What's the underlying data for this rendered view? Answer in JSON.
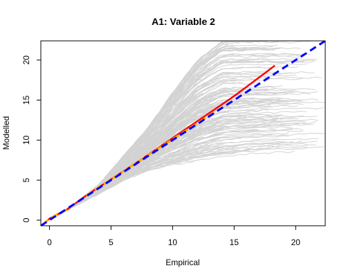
{
  "chart_data": {
    "type": "line",
    "title": "A1: Variable 2",
    "xlabel": "Empirical",
    "ylabel": "Modelled",
    "xlim": [
      -0.7,
      22.4
    ],
    "ylim": [
      -0.7,
      22.4
    ],
    "x_ticks": [
      0,
      5,
      10,
      15,
      20
    ],
    "y_ticks": [
      0,
      5,
      10,
      15,
      20
    ],
    "grid": false,
    "legend": "none",
    "colors": {
      "simulations": "#d3d3d3",
      "modelled_line": "#ff0000",
      "empirical_line": "#ffa500",
      "identity_line": "#0000ff"
    },
    "series": [
      {
        "style": "solid-red",
        "x": [
          -0.5,
          0,
          1.5,
          3,
          5,
          7,
          9,
          11,
          13,
          15,
          17,
          18.3
        ],
        "y": [
          -0.5,
          0.2,
          1.4,
          3.1,
          5.1,
          7.1,
          9.2,
          11.3,
          13.4,
          15.5,
          17.8,
          19.3
        ]
      },
      {
        "style": "dashed-orange",
        "x": [
          -0.5,
          0,
          1.5,
          3,
          5,
          7,
          9,
          11,
          13,
          14.5
        ],
        "y": [
          -0.5,
          0.2,
          1.4,
          3.1,
          5.1,
          7.1,
          9.1,
          11.1,
          13.1,
          14.5
        ]
      },
      {
        "style": "dashed-blue",
        "x": [
          -0.7,
          22.4
        ],
        "y": [
          -0.7,
          22.4
        ]
      }
    ],
    "simulation_envelope": {
      "x": [
        0,
        2,
        4,
        6,
        8,
        10,
        12,
        14,
        16,
        18,
        20,
        22.4
      ],
      "lower": [
        0,
        1.7,
        3.3,
        5,
        6.2,
        6.9,
        7.4,
        7.8,
        8.1,
        8.3,
        8.4,
        8.5
      ],
      "upper": [
        0,
        2.0,
        4.4,
        8,
        11.5,
        16,
        20,
        22.4,
        22.4,
        22.4,
        22.4,
        22.4
      ]
    }
  }
}
